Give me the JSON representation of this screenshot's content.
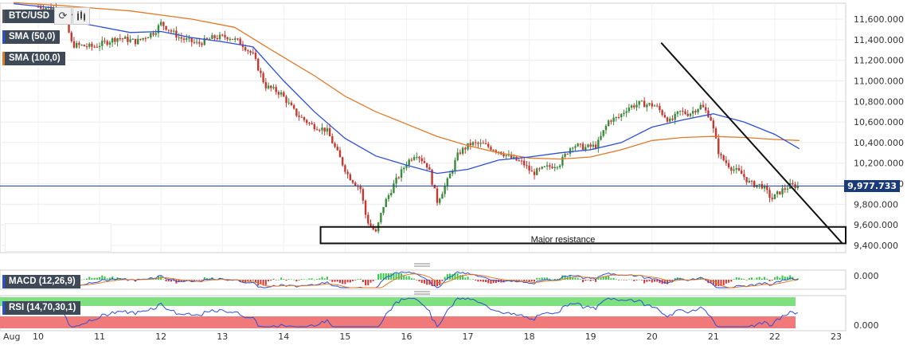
{
  "header": {
    "symbol": "BTC/USD",
    "indicators": [
      {
        "label": "SMA (50,0)",
        "color": "#2d4fd6"
      },
      {
        "label": "SMA (100,0)",
        "color": "#e07b2a"
      }
    ]
  },
  "current_price": "9,977.733",
  "annotation": "Major resistance",
  "macd": {
    "label": "MACD (12,26,9)",
    "tick": "0.000"
  },
  "rsi": {
    "label": "RSI (14,70,30,1)",
    "tick": "0.000"
  },
  "colors": {
    "up": "#3a8a3a",
    "down": "#c8372f",
    "sma50": "#2d4fd6",
    "sma100": "#e07b2a",
    "panel_label_bg": "#3f4a58"
  },
  "icons": [
    "refresh-icon",
    "candle-chart-icon"
  ],
  "chart_data": {
    "type": "candlestick",
    "title": "BTC/USD",
    "x_ticks": [
      "Aug",
      "10",
      "11",
      "12",
      "13",
      "14",
      "15",
      "16",
      "17",
      "18",
      "19",
      "20",
      "21",
      "22",
      "23"
    ],
    "y_ticks": [
      "11,600.000",
      "11,400.000",
      "11,200.000",
      "11,000.000",
      "10,800.000",
      "10,600.000",
      "10,400.000",
      "10,200.000",
      "10,000.000",
      "9,800.000",
      "9,600.000",
      "9,400.000"
    ],
    "ylim": [
      9320,
      11760
    ],
    "xlim": [
      9.6,
      23.1
    ],
    "price_anchors": [
      [
        10.0,
        11720
      ],
      [
        10.4,
        11700
      ],
      [
        10.55,
        11350
      ],
      [
        10.9,
        11330
      ],
      [
        11.3,
        11420
      ],
      [
        11.6,
        11380
      ],
      [
        11.9,
        11480
      ],
      [
        12.0,
        11560
      ],
      [
        12.3,
        11420
      ],
      [
        12.6,
        11360
      ],
      [
        12.85,
        11420
      ],
      [
        13.1,
        11430
      ],
      [
        13.3,
        11370
      ],
      [
        13.5,
        11250
      ],
      [
        13.7,
        10950
      ],
      [
        13.95,
        10880
      ],
      [
        14.2,
        10680
      ],
      [
        14.45,
        10570
      ],
      [
        14.7,
        10520
      ],
      [
        14.85,
        10330
      ],
      [
        15.05,
        10080
      ],
      [
        15.25,
        9950
      ],
      [
        15.35,
        9650
      ],
      [
        15.5,
        9520
      ],
      [
        15.62,
        9780
      ],
      [
        15.8,
        10000
      ],
      [
        16.0,
        10200
      ],
      [
        16.15,
        10300
      ],
      [
        16.35,
        10170
      ],
      [
        16.5,
        9830
      ],
      [
        16.65,
        10000
      ],
      [
        16.85,
        10300
      ],
      [
        17.05,
        10390
      ],
      [
        17.25,
        10380
      ],
      [
        17.5,
        10320
      ],
      [
        17.7,
        10250
      ],
      [
        17.9,
        10200
      ],
      [
        18.05,
        10100
      ],
      [
        18.25,
        10150
      ],
      [
        18.5,
        10200
      ],
      [
        18.7,
        10380
      ],
      [
        18.9,
        10350
      ],
      [
        19.1,
        10370
      ],
      [
        19.3,
        10620
      ],
      [
        19.45,
        10640
      ],
      [
        19.6,
        10740
      ],
      [
        19.8,
        10780
      ],
      [
        20.05,
        10760
      ],
      [
        20.3,
        10600
      ],
      [
        20.45,
        10700
      ],
      [
        20.6,
        10680
      ],
      [
        20.8,
        10760
      ],
      [
        20.95,
        10650
      ],
      [
        21.1,
        10270
      ],
      [
        21.3,
        10150
      ],
      [
        21.45,
        10100
      ],
      [
        21.6,
        10000
      ],
      [
        21.8,
        9980
      ],
      [
        21.95,
        9850
      ],
      [
        22.1,
        9930
      ],
      [
        22.25,
        9980
      ],
      [
        22.38,
        9978
      ]
    ],
    "sma50": [
      [
        9.6,
        11750
      ],
      [
        10.4,
        11700
      ],
      [
        10.8,
        11550
      ],
      [
        11.5,
        11470
      ],
      [
        12.0,
        11480
      ],
      [
        12.5,
        11420
      ],
      [
        13.0,
        11380
      ],
      [
        13.5,
        11330
      ],
      [
        14.0,
        11000
      ],
      [
        14.5,
        10700
      ],
      [
        15.0,
        10440
      ],
      [
        15.5,
        10270
      ],
      [
        16.0,
        10180
      ],
      [
        16.5,
        10100
      ],
      [
        17.0,
        10140
      ],
      [
        17.5,
        10230
      ],
      [
        18.0,
        10260
      ],
      [
        18.5,
        10300
      ],
      [
        19.0,
        10330
      ],
      [
        19.5,
        10400
      ],
      [
        20.0,
        10550
      ],
      [
        20.5,
        10620
      ],
      [
        21.0,
        10680
      ],
      [
        21.5,
        10600
      ],
      [
        22.0,
        10480
      ],
      [
        22.4,
        10340
      ]
    ],
    "sma100": [
      [
        9.6,
        11760
      ],
      [
        10.4,
        11730
      ],
      [
        11.5,
        11680
      ],
      [
        12.5,
        11600
      ],
      [
        13.2,
        11520
      ],
      [
        13.8,
        11300
      ],
      [
        14.5,
        11050
      ],
      [
        15.0,
        10850
      ],
      [
        15.5,
        10700
      ],
      [
        16.0,
        10580
      ],
      [
        16.5,
        10460
      ],
      [
        17.0,
        10370
      ],
      [
        17.5,
        10300
      ],
      [
        18.0,
        10250
      ],
      [
        18.5,
        10240
      ],
      [
        19.0,
        10260
      ],
      [
        19.5,
        10330
      ],
      [
        20.0,
        10420
      ],
      [
        20.5,
        10450
      ],
      [
        21.0,
        10460
      ],
      [
        21.5,
        10450
      ],
      [
        22.0,
        10430
      ],
      [
        22.4,
        10420
      ]
    ],
    "trendline": [
      [
        20.15,
        11370
      ],
      [
        23.1,
        9420
      ]
    ],
    "resistance_zone": [
      9420,
      9580
    ],
    "resistance_x_start": 14.6,
    "current": 9977.733,
    "grid": true
  }
}
